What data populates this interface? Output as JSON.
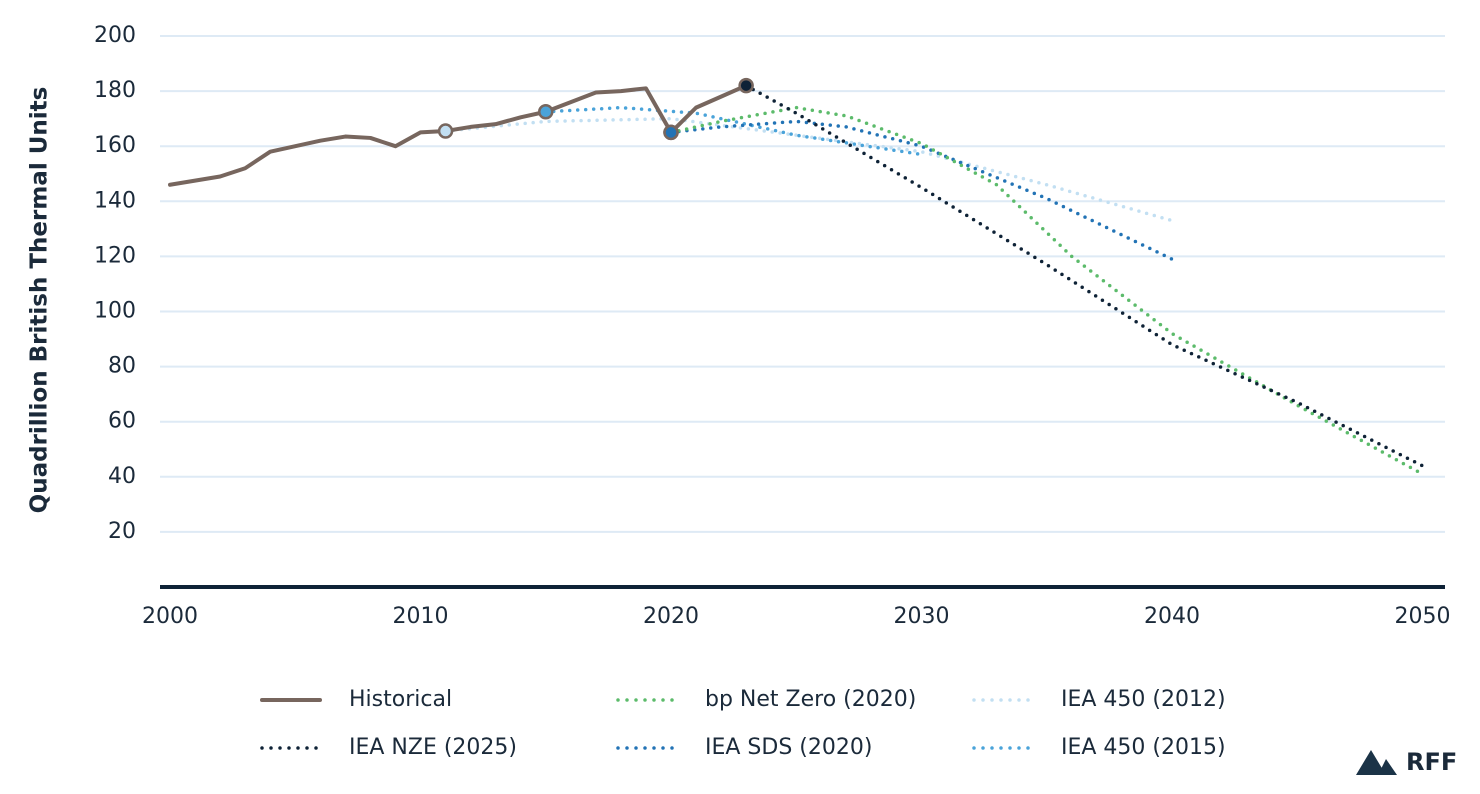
{
  "chart_data": {
    "type": "line",
    "y_axis_label": "Quadrillion British Thermal Units",
    "xlim": [
      1999.6,
      2050.9
    ],
    "xticks": [
      2000,
      2010,
      2020,
      2030,
      2040,
      2050
    ],
    "ylim": [
      0,
      200
    ],
    "yticks": [
      20,
      40,
      60,
      80,
      100,
      120,
      140,
      160,
      180,
      200
    ],
    "grid": true,
    "series": [
      {
        "name": "Historical",
        "color": "#77665e",
        "style": "solid",
        "x": [
          2000,
          2001,
          2002,
          2003,
          2004,
          2005,
          2006,
          2007,
          2008,
          2009,
          2010,
          2011,
          2012,
          2013,
          2014,
          2015,
          2016,
          2017,
          2018,
          2019,
          2020,
          2021,
          2022,
          2023
        ],
        "values": [
          146,
          147.5,
          149,
          152,
          158,
          160,
          162,
          163.5,
          163,
          160,
          165,
          165.5,
          167,
          168,
          170.5,
          172.5,
          176,
          179.5,
          180,
          181,
          165,
          174,
          178,
          182
        ]
      },
      {
        "name": "IEA NZE (2025)",
        "color": "#0e2236",
        "style": "dotted",
        "x": [
          2023,
          2025,
          2030,
          2035,
          2040,
          2045,
          2050
        ],
        "values": [
          182,
          172,
          145,
          117,
          88,
          67,
          44
        ]
      },
      {
        "name": "bp Net Zero (2020)",
        "color": "#5cbb6b",
        "style": "dotted",
        "x": [
          2020,
          2022,
          2025,
          2027,
          2030,
          2033,
          2036,
          2040,
          2045,
          2050
        ],
        "values": [
          165,
          169,
          174,
          171,
          161,
          146,
          120,
          92,
          66,
          41
        ]
      },
      {
        "name": "IEA SDS (2020)",
        "color": "#2273b5",
        "style": "dotted",
        "x": [
          2020,
          2022,
          2025,
          2027,
          2030,
          2035,
          2040
        ],
        "values": [
          165,
          167,
          169,
          167,
          160,
          141,
          119
        ]
      },
      {
        "name": "IEA 450 (2012)",
        "color": "#c2dff2",
        "style": "dotted",
        "x": [
          2011,
          2015,
          2020,
          2025,
          2030,
          2035,
          2040
        ],
        "values": [
          165.5,
          169,
          170,
          164,
          158,
          146,
          133
        ]
      },
      {
        "name": "IEA 450 (2015)",
        "color": "#4aa3d9",
        "style": "dotted",
        "x": [
          2015,
          2018,
          2021,
          2025,
          2030
        ],
        "values": [
          172.5,
          174,
          172,
          164,
          157
        ]
      }
    ]
  },
  "logo": {
    "text": "RFF"
  }
}
